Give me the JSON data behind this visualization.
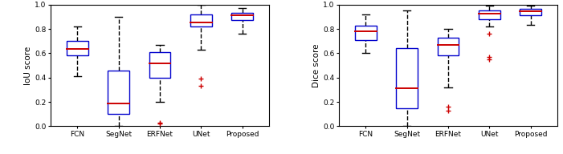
{
  "iou": {
    "categories": [
      "FCN",
      "SegNet",
      "ERFNet",
      "UNet",
      "Proposed"
    ],
    "ylabel": "IoU score",
    "boxes": [
      {
        "q1": 0.585,
        "median": 0.635,
        "q3": 0.7,
        "whisker_low": 0.41,
        "whisker_high": 0.82,
        "outliers": []
      },
      {
        "q1": 0.1,
        "median": 0.19,
        "q3": 0.46,
        "whisker_low": 0.0,
        "whisker_high": 0.9,
        "outliers": []
      },
      {
        "q1": 0.4,
        "median": 0.52,
        "q3": 0.61,
        "whisker_low": 0.2,
        "whisker_high": 0.67,
        "outliers": [
          0.02,
          0.03
        ]
      },
      {
        "q1": 0.82,
        "median": 0.855,
        "q3": 0.92,
        "whisker_low": 0.63,
        "whisker_high": 1.0,
        "outliers": [
          0.33,
          0.39
        ]
      },
      {
        "q1": 0.87,
        "median": 0.91,
        "q3": 0.935,
        "whisker_low": 0.76,
        "whisker_high": 0.97,
        "outliers": []
      }
    ],
    "ylim": [
      0,
      1.0
    ],
    "yticks": [
      0,
      0.2,
      0.4,
      0.6,
      0.8,
      1.0
    ]
  },
  "dice": {
    "categories": [
      "FCN",
      "SegNet",
      "ERFNet",
      "UNet",
      "Proposed"
    ],
    "ylabel": "Dice score",
    "boxes": [
      {
        "q1": 0.71,
        "median": 0.78,
        "q3": 0.83,
        "whisker_low": 0.6,
        "whisker_high": 0.92,
        "outliers": []
      },
      {
        "q1": 0.15,
        "median": 0.31,
        "q3": 0.64,
        "whisker_low": 0.0,
        "whisker_high": 0.95,
        "outliers": []
      },
      {
        "q1": 0.58,
        "median": 0.67,
        "q3": 0.73,
        "whisker_low": 0.32,
        "whisker_high": 0.8,
        "outliers": [
          0.13,
          0.16
        ]
      },
      {
        "q1": 0.88,
        "median": 0.925,
        "q3": 0.95,
        "whisker_low": 0.82,
        "whisker_high": 0.995,
        "outliers": [
          0.55,
          0.57,
          0.76
        ]
      },
      {
        "q1": 0.915,
        "median": 0.945,
        "q3": 0.965,
        "whisker_low": 0.835,
        "whisker_high": 0.99,
        "outliers": []
      }
    ],
    "ylim": [
      0,
      1.0
    ],
    "yticks": [
      0,
      0.2,
      0.4,
      0.6,
      0.8,
      1.0
    ]
  },
  "box_color": "#0000cc",
  "median_color": "#cc0000",
  "whisker_color": "#000000",
  "outlier_color": "#cc0000",
  "background_color": "#ffffff",
  "figsize": [
    7.01,
    1.92
  ],
  "dpi": 100,
  "tick_fontsize": 6.5,
  "label_fontsize": 7.5,
  "box_width": 0.52,
  "cap_ratio": 0.35,
  "linewidth": 1.0,
  "median_lw": 1.4
}
